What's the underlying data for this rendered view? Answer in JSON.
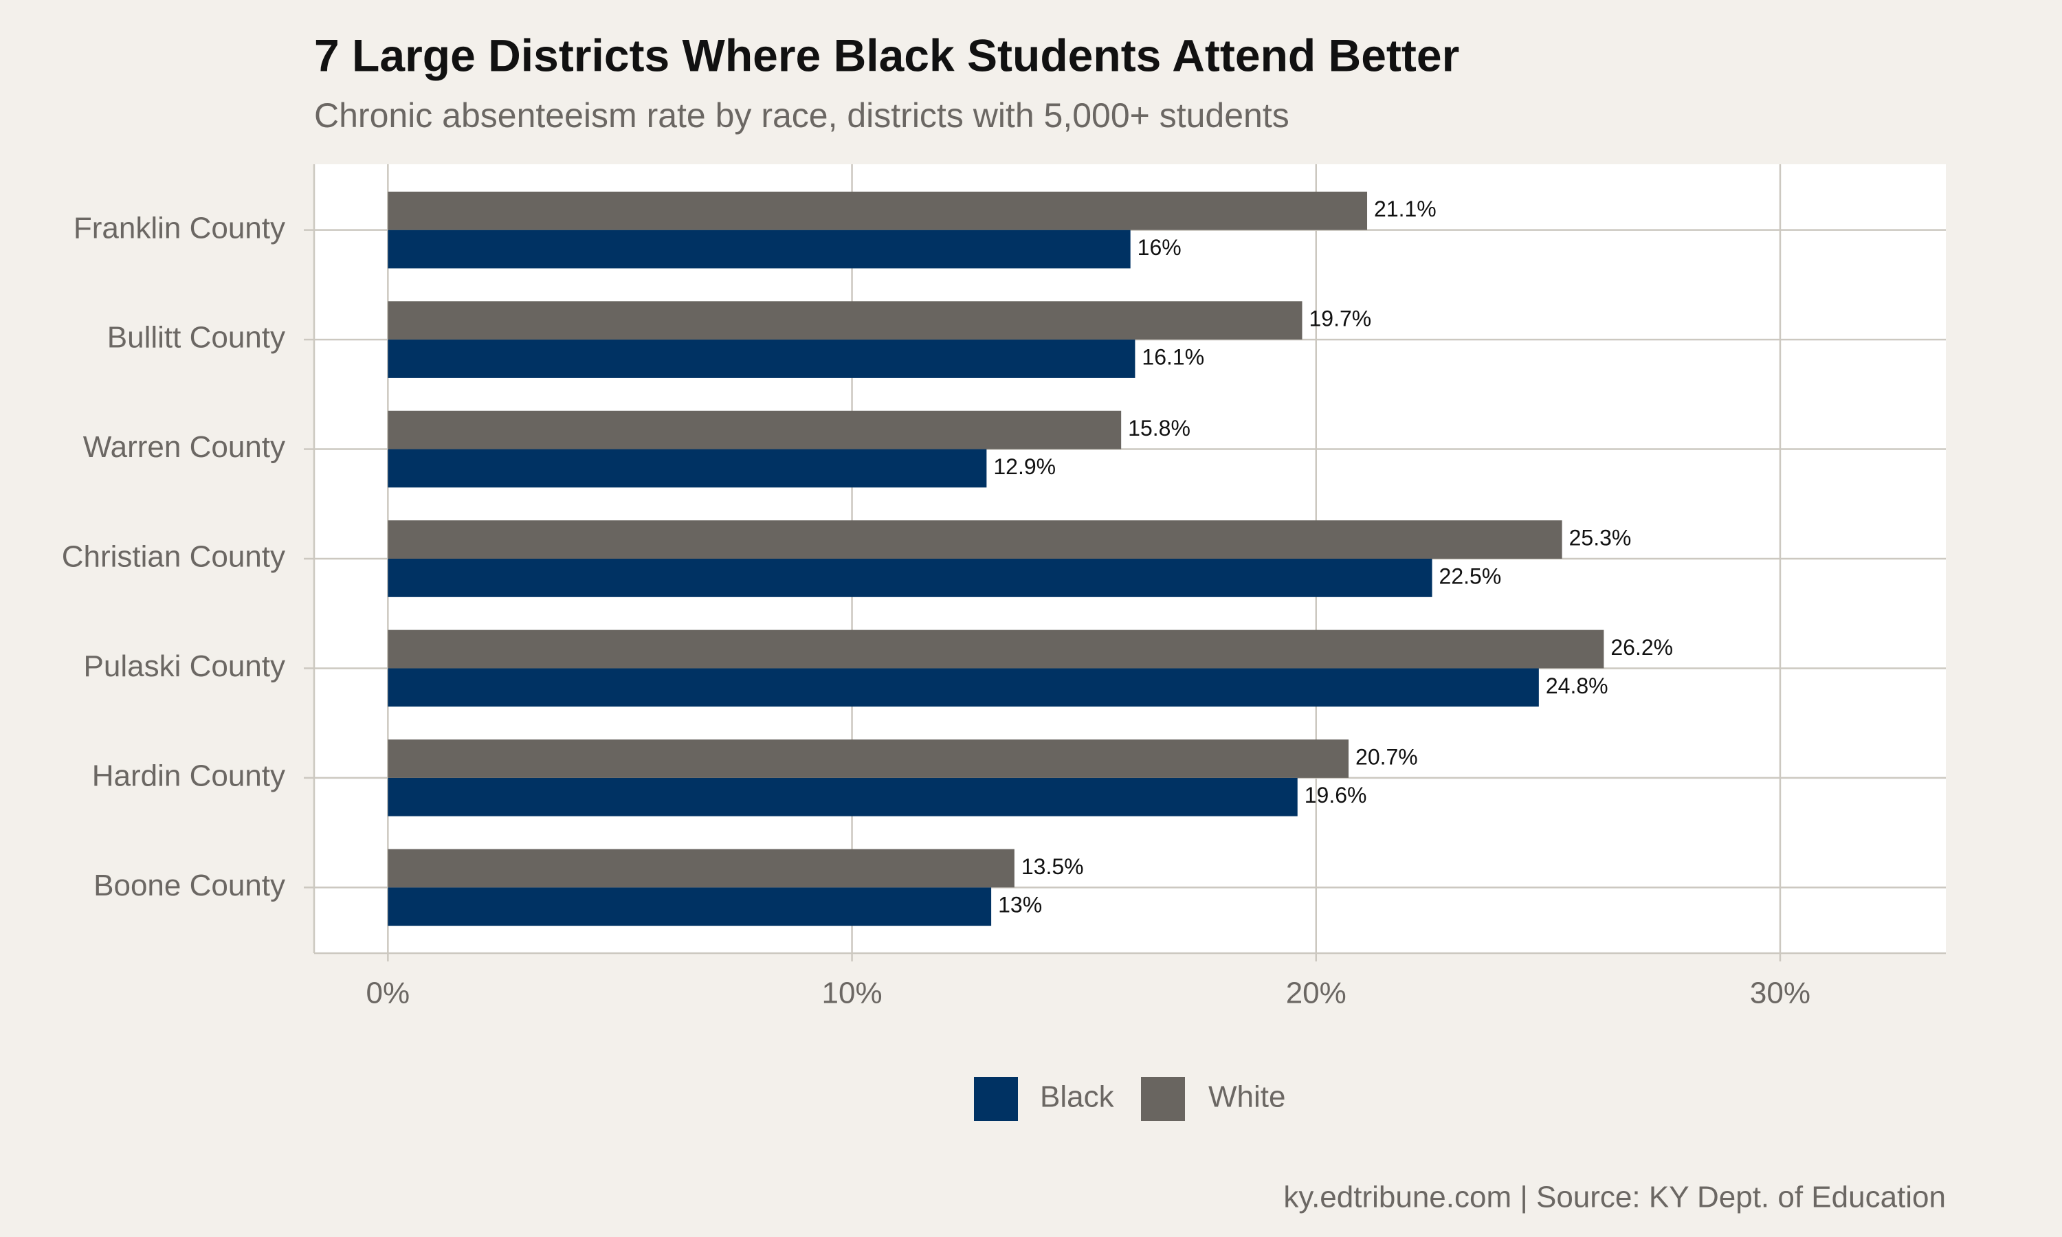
{
  "chart_data": {
    "type": "bar",
    "orientation": "horizontal",
    "title": "7 Large Districts Where Black Students Attend Better",
    "subtitle": "Chronic absenteeism rate by race, districts with 5,000+ students",
    "caption": "ky.edtribune.com | Source: KY Dept. of Education",
    "categories": [
      "Franklin County",
      "Bullitt County",
      "Warren County",
      "Christian County",
      "Pulaski County",
      "Hardin County",
      "Boone County"
    ],
    "series": [
      {
        "name": "Black",
        "color": "#003263",
        "values": [
          16,
          16.1,
          12.9,
          22.5,
          24.8,
          19.6,
          13
        ],
        "value_labels": [
          "16%",
          "16.1%",
          "12.9%",
          "22.5%",
          "24.8%",
          "19.6%",
          "13%"
        ]
      },
      {
        "name": "White",
        "color": "#696560",
        "values": [
          21.1,
          19.7,
          15.8,
          25.3,
          26.2,
          20.7,
          13.5
        ],
        "value_labels": [
          "21.1%",
          "19.7%",
          "15.8%",
          "25.3%",
          "26.2%",
          "20.7%",
          "13.5%"
        ]
      }
    ],
    "xlim": [
      -1.59,
      33.57
    ],
    "xticks": [
      {
        "value": 0,
        "label": "0%"
      },
      {
        "value": 10,
        "label": "10%"
      },
      {
        "value": 20,
        "label": "20%"
      },
      {
        "value": 30,
        "label": "30%"
      }
    ],
    "grid": true,
    "legend": "bottom"
  }
}
